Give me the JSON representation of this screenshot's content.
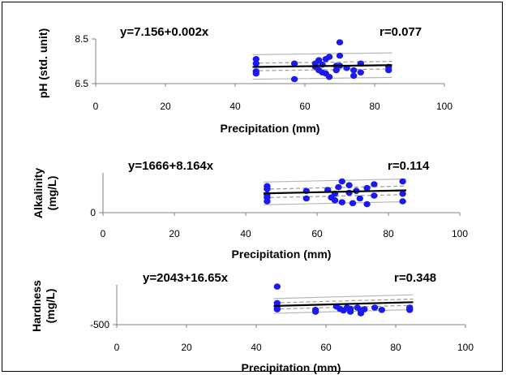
{
  "chart_data": [
    {
      "type": "scatter",
      "equation": "y=7.156+0.002x",
      "r_label": "r=0.077",
      "xlabel": "Precipitation (mm)",
      "ylabel_lines": [
        "pH (std. unit)"
      ],
      "xticks": [
        "0",
        "20",
        "40",
        "60",
        "80",
        "100"
      ],
      "yticks": [
        "6.5",
        "8.5"
      ],
      "xlim": [
        0,
        100
      ],
      "ylim": [
        6.5,
        8.5
      ],
      "regression": {
        "intercept": 7.156,
        "slope": 0.002
      },
      "band_inner": 0.17,
      "band_outer": 0.55,
      "points": [
        {
          "x": 46,
          "y": 7.6
        },
        {
          "x": 46,
          "y": 7.4
        },
        {
          "x": 46,
          "y": 7.05
        },
        {
          "x": 46,
          "y": 6.95
        },
        {
          "x": 57,
          "y": 7.4
        },
        {
          "x": 57,
          "y": 6.7
        },
        {
          "x": 63,
          "y": 7.4
        },
        {
          "x": 63,
          "y": 7.25
        },
        {
          "x": 64,
          "y": 7.1
        },
        {
          "x": 64,
          "y": 7.55
        },
        {
          "x": 65,
          "y": 7.35
        },
        {
          "x": 65,
          "y": 7.0
        },
        {
          "x": 66,
          "y": 7.6
        },
        {
          "x": 66,
          "y": 6.95
        },
        {
          "x": 67,
          "y": 7.7
        },
        {
          "x": 67,
          "y": 6.8
        },
        {
          "x": 69,
          "y": 7.3
        },
        {
          "x": 69,
          "y": 7.1
        },
        {
          "x": 70,
          "y": 8.35
        },
        {
          "x": 70,
          "y": 7.75
        },
        {
          "x": 70,
          "y": 7.3
        },
        {
          "x": 72,
          "y": 7.2
        },
        {
          "x": 74,
          "y": 7.1
        },
        {
          "x": 74,
          "y": 6.85
        },
        {
          "x": 76,
          "y": 7.4
        },
        {
          "x": 76,
          "y": 7.0
        },
        {
          "x": 84,
          "y": 7.25
        },
        {
          "x": 84,
          "y": 7.1
        }
      ]
    },
    {
      "type": "scatter",
      "equation": "y=1666+8.164x",
      "r_label": "r=0.114",
      "xlabel": "Precipitation (mm)",
      "ylabel_lines": [
        "Alkalinity",
        "(mg/L)"
      ],
      "xticks": [
        "0",
        "20",
        "40",
        "60",
        "80",
        "100"
      ],
      "yticks": [
        "0"
      ],
      "xlim": [
        0,
        100
      ],
      "ylim": [
        0,
        4200
      ],
      "regression": {
        "intercept": 1666,
        "slope": 8.164
      },
      "band_inner": 450,
      "band_outer": 1200,
      "points": [
        {
          "x": 46,
          "y": 2800
        },
        {
          "x": 46,
          "y": 2500
        },
        {
          "x": 46,
          "y": 1900
        },
        {
          "x": 46,
          "y": 1600
        },
        {
          "x": 46,
          "y": 1200
        },
        {
          "x": 57,
          "y": 2300
        },
        {
          "x": 57,
          "y": 1500
        },
        {
          "x": 63,
          "y": 2400
        },
        {
          "x": 64,
          "y": 1600
        },
        {
          "x": 65,
          "y": 2000
        },
        {
          "x": 65,
          "y": 1300
        },
        {
          "x": 66,
          "y": 2700
        },
        {
          "x": 67,
          "y": 3300
        },
        {
          "x": 67,
          "y": 1100
        },
        {
          "x": 69,
          "y": 2100
        },
        {
          "x": 69,
          "y": 2900
        },
        {
          "x": 70,
          "y": 1000
        },
        {
          "x": 71,
          "y": 2300
        },
        {
          "x": 72,
          "y": 1500
        },
        {
          "x": 74,
          "y": 2600
        },
        {
          "x": 74,
          "y": 900
        },
        {
          "x": 76,
          "y": 3000
        },
        {
          "x": 76,
          "y": 1800
        },
        {
          "x": 84,
          "y": 3300
        },
        {
          "x": 84,
          "y": 2000
        },
        {
          "x": 84,
          "y": 1200
        }
      ]
    },
    {
      "type": "scatter",
      "equation": "y=2043+16.65x",
      "r_label": "r=0.348",
      "xlabel": "Precipitation (mm)",
      "ylabel_lines": [
        "Hardness",
        "(mg/L)"
      ],
      "xticks": [
        "0",
        "20",
        "40",
        "60",
        "80",
        "100"
      ],
      "yticks": [
        "-500"
      ],
      "xlim": [
        0,
        100
      ],
      "ylim": [
        -500,
        6500
      ],
      "regression": {
        "intercept": 2043,
        "slope": 16.65
      },
      "band_inner": 550,
      "band_outer": 1300,
      "points": [
        {
          "x": 46,
          "y": 6200
        },
        {
          "x": 46,
          "y": 3300
        },
        {
          "x": 46,
          "y": 2700
        },
        {
          "x": 46,
          "y": 2200
        },
        {
          "x": 57,
          "y": 2100
        },
        {
          "x": 57,
          "y": 1800
        },
        {
          "x": 63,
          "y": 2700
        },
        {
          "x": 64,
          "y": 2300
        },
        {
          "x": 65,
          "y": 2000
        },
        {
          "x": 66,
          "y": 2500
        },
        {
          "x": 67,
          "y": 2300
        },
        {
          "x": 67,
          "y": 1800
        },
        {
          "x": 69,
          "y": 2500
        },
        {
          "x": 70,
          "y": 2000
        },
        {
          "x": 70,
          "y": 1500
        },
        {
          "x": 71,
          "y": 2200
        },
        {
          "x": 74,
          "y": 2500
        },
        {
          "x": 76,
          "y": 2100
        },
        {
          "x": 84,
          "y": 2500
        },
        {
          "x": 84,
          "y": 2100
        }
      ]
    }
  ]
}
